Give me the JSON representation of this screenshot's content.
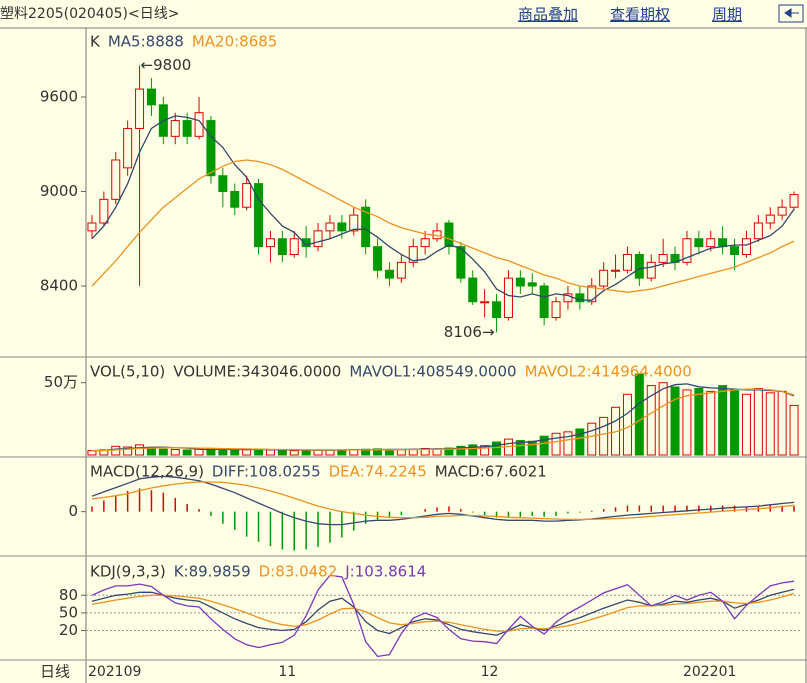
{
  "header": {
    "title": "塑料2205(020405)<日线>",
    "links": [
      "商品叠加",
      "查看期权",
      "周期"
    ]
  },
  "chart_data": [
    {
      "type": "candlestick",
      "title": "K",
      "up_color": "#e00000",
      "down_color": "#009a00",
      "open": [
        8750,
        8800,
        8950,
        9150,
        9400,
        9650,
        9550,
        9350,
        9450,
        9350,
        9450,
        9100,
        9000,
        8900,
        9050,
        8650,
        8700,
        8600,
        8700,
        8650,
        8750,
        8800,
        8750,
        8900,
        8650,
        8500,
        8450,
        8550,
        8650,
        8700,
        8800,
        8650,
        8450,
        8300,
        8300,
        8200,
        8450,
        8420,
        8400,
        8200,
        8300,
        8350,
        8300,
        8400,
        8500,
        8500,
        8600,
        8450,
        8550,
        8600,
        8550,
        8700,
        8650,
        8700,
        8650,
        8600,
        8700,
        8800,
        8850,
        8900
      ],
      "high": [
        8850,
        9000,
        9250,
        9450,
        9800,
        9720,
        9600,
        9500,
        9500,
        9600,
        9480,
        9150,
        9050,
        9100,
        9080,
        8750,
        8750,
        8750,
        8780,
        8800,
        8850,
        8850,
        8900,
        8950,
        8700,
        8550,
        8600,
        8700,
        8750,
        8800,
        8820,
        8680,
        8500,
        8380,
        8350,
        8500,
        8500,
        8480,
        8420,
        8330,
        8400,
        8400,
        8450,
        8550,
        8600,
        8650,
        8620,
        8600,
        8700,
        8650,
        8750,
        8750,
        8750,
        8780,
        8700,
        8750,
        8850,
        8900,
        8950,
        9000
      ],
      "low": [
        8700,
        8780,
        8920,
        9100,
        8400,
        9480,
        9300,
        9300,
        9300,
        9330,
        9050,
        8900,
        8850,
        8880,
        8600,
        8550,
        8550,
        8580,
        8580,
        8620,
        8700,
        8700,
        8720,
        8600,
        8450,
        8400,
        8420,
        8520,
        8600,
        8680,
        8600,
        8420,
        8280,
        8200,
        8106,
        8180,
        8350,
        8350,
        8150,
        8180,
        8250,
        8250,
        8280,
        8380,
        8450,
        8480,
        8400,
        8430,
        8520,
        8500,
        8530,
        8600,
        8620,
        8600,
        8500,
        8580,
        8680,
        8760,
        8820,
        8880
      ],
      "close": [
        8800,
        8950,
        9200,
        9400,
        9650,
        9550,
        9350,
        9450,
        9350,
        9500,
        9100,
        9000,
        8900,
        9050,
        8650,
        8700,
        8600,
        8700,
        8650,
        8750,
        8800,
        8750,
        8850,
        8650,
        8500,
        8450,
        8550,
        8650,
        8700,
        8750,
        8650,
        8450,
        8300,
        8300,
        8200,
        8450,
        8400,
        8400,
        8200,
        8300,
        8350,
        8300,
        8400,
        8500,
        8500,
        8600,
        8450,
        8550,
        8600,
        8550,
        8700,
        8650,
        8700,
        8650,
        8600,
        8700,
        8800,
        8850,
        8900,
        8980
      ],
      "series": [
        {
          "name": "MA5:8888",
          "color": "#34476e",
          "values": [
            8700,
            8780,
            8900,
            9050,
            9250,
            9400,
            9450,
            9480,
            9470,
            9450,
            9350,
            9280,
            9170,
            9090,
            8950,
            8860,
            8780,
            8740,
            8660,
            8680,
            8700,
            8730,
            8760,
            8760,
            8710,
            8650,
            8600,
            8560,
            8570,
            8620,
            8660,
            8640,
            8570,
            8490,
            8380,
            8340,
            8330,
            8350,
            8330,
            8350,
            8340,
            8310,
            8310,
            8370,
            8410,
            8460,
            8510,
            8520,
            8540,
            8550,
            8580,
            8610,
            8640,
            8650,
            8660,
            8660,
            8690,
            8720,
            8780,
            8888
          ]
        },
        {
          "name": "MA20:8685",
          "color": "#f0921e",
          "values": [
            8400,
            8480,
            8560,
            8650,
            8740,
            8820,
            8900,
            8960,
            9020,
            9080,
            9120,
            9160,
            9190,
            9200,
            9190,
            9170,
            9140,
            9100,
            9060,
            9020,
            8980,
            8940,
            8900,
            8870,
            8840,
            8800,
            8770,
            8750,
            8730,
            8720,
            8700,
            8670,
            8640,
            8610,
            8580,
            8560,
            8530,
            8500,
            8470,
            8450,
            8420,
            8400,
            8390,
            8380,
            8370,
            8360,
            8370,
            8380,
            8400,
            8420,
            8440,
            8460,
            8480,
            8500,
            8520,
            8550,
            8580,
            8610,
            8650,
            8685
          ]
        }
      ],
      "annotations": [
        {
          "label": "←9800"
        },
        {
          "label": "8106→"
        }
      ],
      "ylim": [
        7962,
        10025
      ],
      "yticks": [
        8400,
        9000,
        9600
      ]
    },
    {
      "type": "bar",
      "title": "VOL(5,10)",
      "values_name": "VOLUME:343046.0000",
      "values": [
        30000,
        35000,
        60000,
        55000,
        70000,
        45000,
        40000,
        38000,
        35000,
        40000,
        42000,
        38000,
        35000,
        36000,
        40000,
        35000,
        32000,
        30000,
        33000,
        35000,
        34000,
        36000,
        38000,
        40000,
        42000,
        38000,
        36000,
        40000,
        45000,
        42000,
        48000,
        60000,
        70000,
        65000,
        90000,
        110000,
        100000,
        95000,
        130000,
        150000,
        160000,
        180000,
        220000,
        260000,
        330000,
        420000,
        560000,
        480000,
        500000,
        470000,
        450000,
        460000,
        440000,
        480000,
        450000,
        420000,
        460000,
        430000,
        440000,
        343046
      ],
      "series": [
        {
          "name": "MAVOL1:408549.0000",
          "color": "#34476e",
          "values": [
            30000,
            32000,
            40000,
            45000,
            50000,
            53000,
            54000,
            50000,
            48000,
            40000,
            39000,
            39000,
            38000,
            38000,
            38000,
            37000,
            36000,
            35000,
            34000,
            33000,
            33000,
            34000,
            35000,
            37000,
            38000,
            39000,
            39000,
            39000,
            40000,
            42000,
            42000,
            47000,
            53000,
            57000,
            67000,
            79000,
            87000,
            92000,
            105000,
            117000,
            127000,
            143000,
            168000,
            198000,
            236000,
            288000,
            358000,
            410000,
            458000,
            486000,
            492000,
            472000,
            464000,
            460000,
            456000,
            450000,
            450000,
            446000,
            440000,
            408549
          ]
        },
        {
          "name": "MAVOL2:414964.4000",
          "color": "#f0921e",
          "values": [
            30000,
            31000,
            35000,
            40000,
            45000,
            48000,
            50000,
            50000,
            50000,
            48000,
            46000,
            44000,
            43000,
            42000,
            40000,
            39000,
            38000,
            37000,
            36000,
            35000,
            35000,
            35000,
            35000,
            35000,
            36000,
            36000,
            37000,
            37000,
            38000,
            39000,
            40000,
            42000,
            45000,
            48000,
            52000,
            58000,
            65000,
            72000,
            81000,
            92000,
            105000,
            116000,
            130000,
            145000,
            160000,
            190000,
            240000,
            290000,
            340000,
            385000,
            410000,
            420000,
            430000,
            440000,
            450000,
            455000,
            455000,
            450000,
            440000,
            414964.4
          ]
        }
      ],
      "ylim": [
        0,
        657000
      ],
      "yticks": [
        {
          "value": 500000,
          "label": "50万"
        }
      ]
    },
    {
      "type": "macd",
      "title": "MACD(12,26,9)",
      "series": [
        {
          "name": "DIFF:108.0255",
          "color": "#34476e",
          "values": [
            180,
            230,
            280,
            330,
            380,
            400,
            410,
            400,
            380,
            360,
            320,
            270,
            220,
            160,
            100,
            40,
            -20,
            -70,
            -110,
            -140,
            -150,
            -150,
            -130,
            -110,
            -100,
            -100,
            -90,
            -70,
            -50,
            -30,
            -20,
            -30,
            -50,
            -70,
            -90,
            -100,
            -100,
            -100,
            -110,
            -110,
            -100,
            -95,
            -85,
            -70,
            -55,
            -40,
            -30,
            -20,
            -10,
            0,
            10,
            20,
            30,
            40,
            50,
            55,
            65,
            80,
            95,
            108.0255
          ]
        },
        {
          "name": "DEA:74.2245",
          "color": "#f0921e",
          "values": [
            150,
            165,
            185,
            210,
            245,
            275,
            300,
            320,
            335,
            345,
            345,
            340,
            325,
            305,
            275,
            240,
            200,
            155,
            110,
            65,
            30,
            0,
            -20,
            -40,
            -55,
            -65,
            -70,
            -70,
            -65,
            -55,
            -50,
            -45,
            -45,
            -50,
            -55,
            -65,
            -70,
            -75,
            -80,
            -85,
            -90,
            -90,
            -90,
            -85,
            -80,
            -75,
            -65,
            -55,
            -45,
            -35,
            -25,
            -15,
            -5,
            5,
            15,
            25,
            35,
            45,
            60,
            74.2245
          ]
        }
      ],
      "bars": {
        "name": "MACD:67.6021",
        "up_color": "#e00000",
        "down_color": "#009a00",
        "values": [
          60,
          130,
          190,
          240,
          270,
          250,
          220,
          160,
          90,
          30,
          -50,
          -140,
          -210,
          -290,
          -350,
          -400,
          -440,
          -450,
          -440,
          -410,
          -360,
          -300,
          -220,
          -140,
          -90,
          -70,
          -40,
          0,
          30,
          50,
          60,
          30,
          -10,
          -40,
          -70,
          -70,
          -60,
          -50,
          -60,
          -50,
          -20,
          -10,
          10,
          30,
          50,
          70,
          70,
          70,
          70,
          70,
          70,
          70,
          70,
          70,
          70,
          60,
          60,
          70,
          70,
          67.6021
        ]
      },
      "ylim": [
        -480,
        600
      ],
      "yticks": [
        0
      ]
    },
    {
      "type": "line",
      "title": "KDJ(9,3,3)",
      "grid": true,
      "x_label": "日线",
      "categories": [
        "202109",
        null,
        null,
        null,
        null,
        null,
        null,
        null,
        null,
        null,
        null,
        null,
        null,
        null,
        null,
        null,
        "11",
        null,
        null,
        null,
        null,
        null,
        null,
        null,
        null,
        null,
        null,
        null,
        null,
        null,
        null,
        null,
        null,
        "12",
        null,
        null,
        null,
        null,
        null,
        null,
        null,
        null,
        null,
        null,
        null,
        null,
        null,
        null,
        null,
        null,
        "202201",
        null,
        null,
        null,
        null,
        null,
        null,
        null,
        null,
        null
      ],
      "series": [
        {
          "name": "K:89.9859",
          "color": "#34476e",
          "values": [
            70,
            75,
            80,
            82,
            85,
            85,
            80,
            75,
            72,
            70,
            60,
            50,
            40,
            32,
            25,
            22,
            20,
            22,
            35,
            55,
            70,
            75,
            60,
            35,
            20,
            15,
            25,
            35,
            40,
            38,
            30,
            22,
            18,
            15,
            12,
            20,
            30,
            25,
            20,
            28,
            35,
            42,
            50,
            58,
            65,
            72,
            68,
            62,
            65,
            70,
            68,
            72,
            75,
            70,
            58,
            65,
            72,
            80,
            85,
            89.9859
          ]
        },
        {
          "name": "D:83.0482",
          "color": "#f0921e",
          "values": [
            65,
            68,
            72,
            75,
            78,
            80,
            80,
            79,
            77,
            75,
            70,
            64,
            57,
            50,
            42,
            35,
            30,
            27,
            30,
            38,
            48,
            57,
            58,
            52,
            42,
            33,
            30,
            32,
            35,
            36,
            34,
            30,
            26,
            22,
            19,
            19,
            23,
            24,
            23,
            25,
            28,
            33,
            39,
            45,
            52,
            59,
            62,
            62,
            63,
            65,
            66,
            68,
            70,
            70,
            67,
            66,
            68,
            72,
            77,
            83.0482
          ]
        },
        {
          "name": "J:103.8614",
          "color": "#7b36c0",
          "values": [
            80,
            89,
            96,
            96,
            99,
            95,
            80,
            67,
            62,
            60,
            40,
            22,
            6,
            -4,
            -9,
            -4,
            0,
            12,
            45,
            89,
            114,
            111,
            64,
            1,
            -24,
            -21,
            15,
            41,
            50,
            42,
            22,
            6,
            2,
            1,
            -2,
            22,
            44,
            27,
            14,
            34,
            49,
            60,
            72,
            84,
            91,
            98,
            80,
            62,
            69,
            80,
            72,
            80,
            85,
            70,
            40,
            63,
            80,
            96,
            101,
            103.8614
          ]
        }
      ],
      "ylim": [
        -25,
        140
      ],
      "yticks": [
        80,
        50,
        20
      ]
    }
  ]
}
